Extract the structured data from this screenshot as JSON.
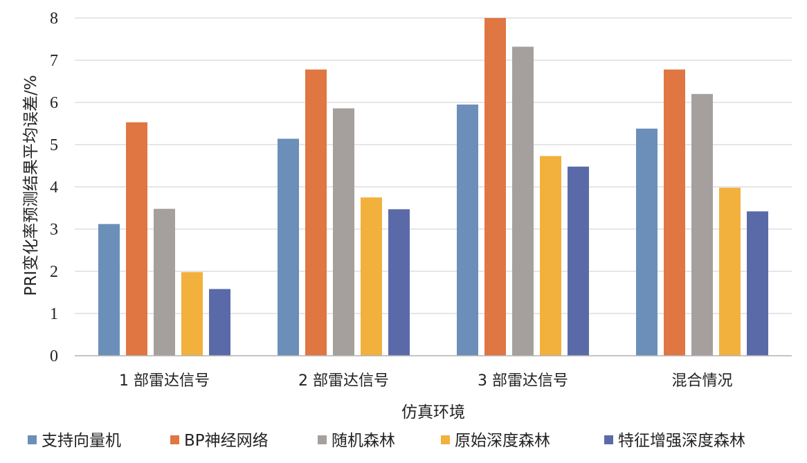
{
  "chart_data": {
    "type": "bar",
    "title": "",
    "xlabel": "仿真环境",
    "ylabel": "PRI变化率预测结果平均误差/%",
    "categories": [
      "1 部雷达信号",
      "2 部雷达信号",
      "3 部雷达信号",
      "混合情况"
    ],
    "ylim": [
      0,
      8
    ],
    "yticks": [
      "0",
      "1",
      "2",
      "3",
      "4",
      "5",
      "6",
      "7",
      "8"
    ],
    "grid": true,
    "legend_position": "bottom",
    "series": [
      {
        "name": "支持向量机",
        "color": "#6b8fb9",
        "values": [
          3.12,
          5.14,
          5.95,
          5.38
        ]
      },
      {
        "name": "BP神经网络",
        "color": "#e07642",
        "values": [
          5.53,
          6.78,
          8.0,
          6.78
        ]
      },
      {
        "name": "随机森林",
        "color": "#a5a09d",
        "values": [
          3.48,
          5.86,
          7.32,
          6.2
        ]
      },
      {
        "name": "原始深度森林",
        "color": "#f2b03d",
        "values": [
          1.98,
          3.75,
          4.73,
          3.98
        ]
      },
      {
        "name": "特征增强深度森林",
        "color": "#5a6aa8",
        "values": [
          1.58,
          3.47,
          4.48,
          3.42
        ]
      }
    ]
  }
}
